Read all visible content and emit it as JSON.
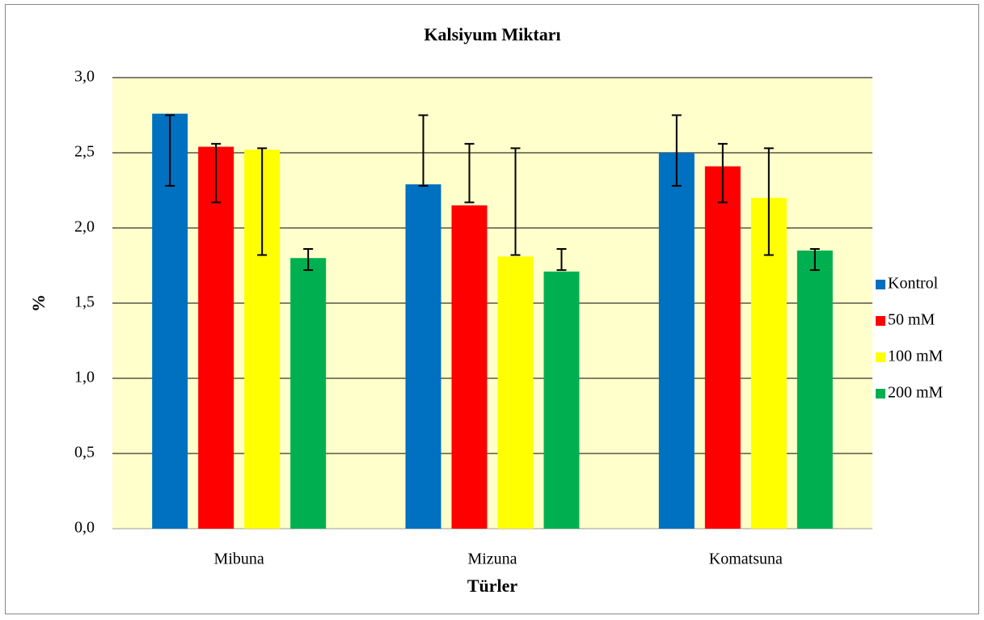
{
  "chart_data": {
    "type": "bar",
    "title": "Kalsiyum Miktarı",
    "xlabel": "Türler",
    "ylabel": "%",
    "categories": [
      "Mibuna",
      "Mizuna",
      "Komatsuna"
    ],
    "series": [
      {
        "name": "Kontrol",
        "color": "#0070c0",
        "values": [
          2.76,
          2.29,
          2.5
        ],
        "error_low": [
          2.28,
          2.28,
          2.28
        ],
        "error_high": [
          2.75,
          2.75,
          2.75
        ]
      },
      {
        "name": "50 mM",
        "color": "#ff0000",
        "values": [
          2.54,
          2.15,
          2.41
        ],
        "error_low": [
          2.17,
          2.17,
          2.17
        ],
        "error_high": [
          2.56,
          2.56,
          2.56
        ]
      },
      {
        "name": "100 mM",
        "color": "#ffff00",
        "values": [
          2.52,
          1.81,
          2.2
        ],
        "error_low": [
          1.82,
          1.82,
          1.82
        ],
        "error_high": [
          2.53,
          2.53,
          2.53
        ]
      },
      {
        "name": "200 mM",
        "color": "#00b050",
        "values": [
          1.8,
          1.71,
          1.85
        ],
        "error_low": [
          1.72,
          1.72,
          1.72
        ],
        "error_high": [
          1.86,
          1.86,
          1.86
        ]
      }
    ],
    "ylim": [
      0,
      3
    ],
    "yticks": [
      {
        "value": 0,
        "label": "0,0"
      },
      {
        "value": 0.5,
        "label": "0,5"
      },
      {
        "value": 1,
        "label": "1,0"
      },
      {
        "value": 1.5,
        "label": "1,5"
      },
      {
        "value": 2,
        "label": "2,0"
      },
      {
        "value": 2.5,
        "label": "2,5"
      },
      {
        "value": 3,
        "label": "3,0"
      }
    ],
    "grid": true,
    "legend": "right",
    "plot_background": "#ffffcc"
  }
}
